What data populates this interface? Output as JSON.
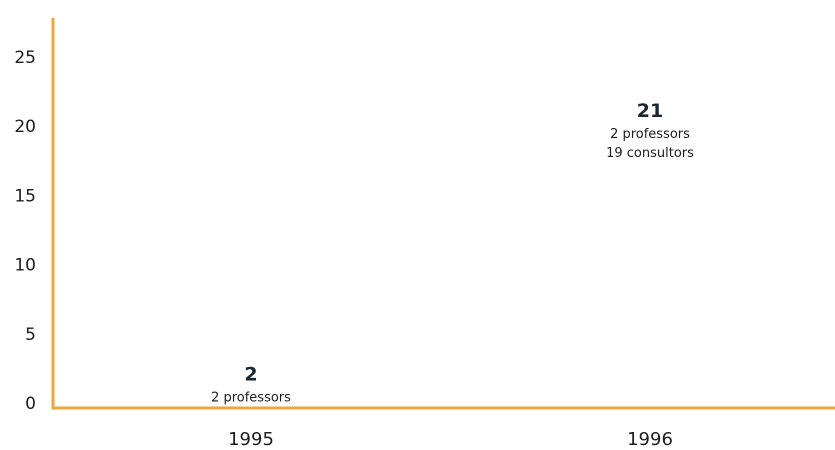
{
  "chart_data": {
    "type": "bar",
    "categories": [
      "1995",
      "1996"
    ],
    "values": [
      2,
      21
    ],
    "value_labels": [
      "2",
      "21"
    ],
    "annotations": [
      [
        "2 professors"
      ],
      [
        "2 professors",
        "19 consultors"
      ]
    ],
    "y_ticks": [
      0,
      5,
      10,
      15,
      20,
      25
    ],
    "ylim": [
      0,
      27
    ],
    "title": "",
    "xlabel": "",
    "ylabel": "",
    "grid": false,
    "axis_color": "#e8a93a",
    "text_color": "#1c1c1c"
  }
}
